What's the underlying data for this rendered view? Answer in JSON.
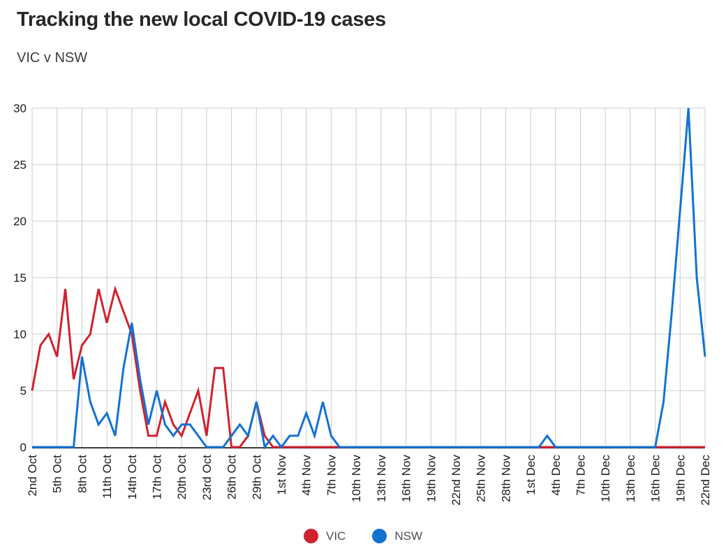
{
  "page": {
    "title": "Tracking the new local COVID-19 cases",
    "subtitle": "VIC v NSW"
  },
  "colors": {
    "grid": "#cccccc",
    "axis": "#3a3a3a",
    "tick_text": "#1a1a1a",
    "background": "#ffffff"
  },
  "chart_data": {
    "type": "line",
    "title": "Tracking the new local COVID-19 cases",
    "subtitle": "VIC v NSW",
    "xlabel": "",
    "ylabel": "",
    "ylim": [
      0,
      30
    ],
    "yticks": [
      0,
      5,
      10,
      15,
      20,
      25,
      30
    ],
    "grid": true,
    "legend_position": "bottom",
    "n_points": 82,
    "points_per_tick": 3,
    "x_range_text": "2nd Oct to 22nd Dec, daily",
    "x_tick_labels": [
      "2nd Oct",
      "5th Oct",
      "8th Oct",
      "11th Oct",
      "14th Oct",
      "17th Oct",
      "20th Oct",
      "23rd Oct",
      "26th Oct",
      "29th Oct",
      "1st Nov",
      "4th Nov",
      "7th Nov",
      "10th Nov",
      "13th Nov",
      "16th Nov",
      "19th Nov",
      "22nd Nov",
      "25th Nov",
      "28th Nov",
      "1st Dec",
      "4th Dec",
      "7th Dec",
      "10th Dec",
      "13th Dec",
      "16th Dec",
      "19th Dec",
      "22nd Dec"
    ],
    "series": [
      {
        "name": "VIC",
        "color": "#d0212f",
        "values": [
          5,
          9,
          10,
          8,
          14,
          6,
          9,
          10,
          14,
          11,
          14,
          12,
          10,
          5,
          1,
          1,
          4,
          2,
          1,
          3,
          5,
          1,
          7,
          7,
          0,
          0,
          1,
          4,
          1,
          0,
          0,
          0,
          0,
          0,
          0,
          0,
          0,
          0,
          0,
          0,
          0,
          0,
          0,
          0,
          0,
          0,
          0,
          0,
          0,
          0,
          0,
          0,
          0,
          0,
          0,
          0,
          0,
          0,
          0,
          0,
          0,
          0,
          0,
          0,
          0,
          0,
          0,
          0,
          0,
          0,
          0,
          0,
          0,
          0,
          0,
          0,
          0,
          0,
          0,
          0,
          0,
          0
        ]
      },
      {
        "name": "NSW",
        "color": "#1272d2",
        "values": [
          0,
          0,
          0,
          0,
          0,
          0,
          8,
          4,
          2,
          3,
          1,
          7,
          11,
          6,
          2,
          5,
          2,
          1,
          2,
          2,
          1,
          0,
          0,
          0,
          1,
          2,
          1,
          4,
          0,
          1,
          0,
          1,
          1,
          3,
          1,
          4,
          1,
          0,
          0,
          0,
          0,
          0,
          0,
          0,
          0,
          0,
          0,
          0,
          0,
          0,
          0,
          0,
          0,
          0,
          0,
          0,
          0,
          0,
          0,
          0,
          0,
          0,
          1,
          0,
          0,
          0,
          0,
          0,
          0,
          0,
          0,
          0,
          0,
          0,
          0,
          0,
          4,
          12,
          21,
          30,
          15,
          8
        ]
      }
    ]
  }
}
